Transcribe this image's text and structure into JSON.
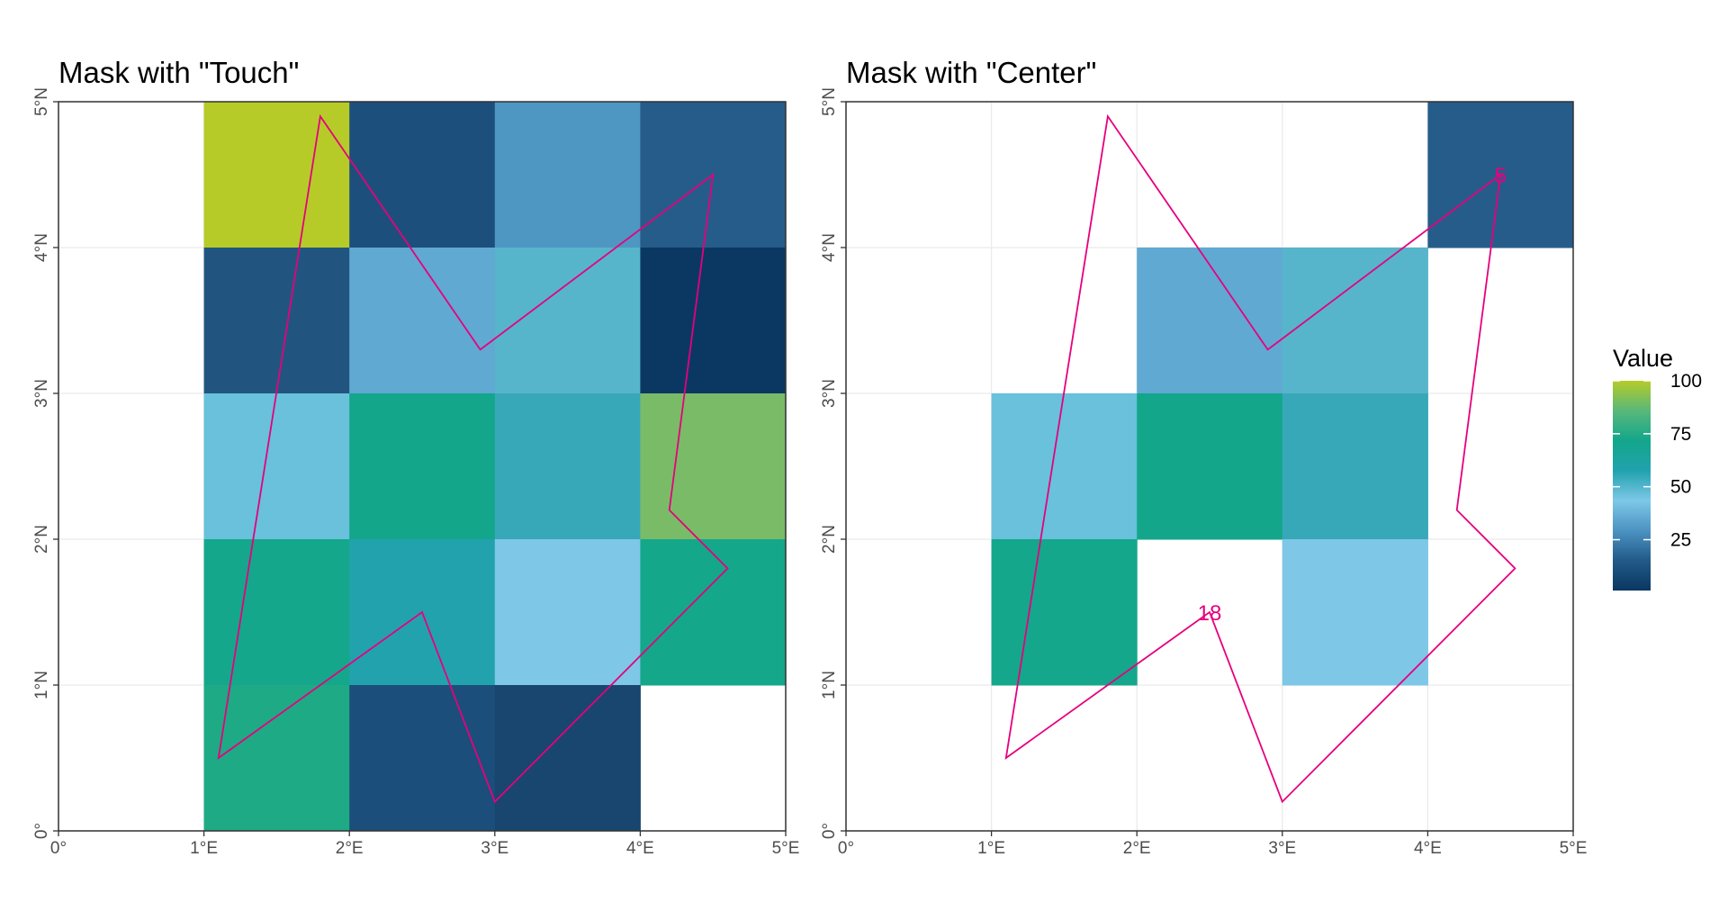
{
  "colors": {
    "polygon": "#E6007E",
    "grid": "#ebebeb",
    "frame": "#333333",
    "panel_bg": "#ffffff",
    "scale": [
      "#0A3761",
      "#215A88",
      "#4C93C2",
      "#7DC8E8",
      "#22A2AD",
      "#13A68B",
      "#58B87A",
      "#B6CB28"
    ]
  },
  "chart_data": [
    {
      "type": "heatmap",
      "title": "Mask with \"Touch\"",
      "xlim": [
        0,
        5
      ],
      "ylim": [
        0,
        5
      ],
      "x_ticks": [
        "0°",
        "1°E",
        "2°E",
        "3°E",
        "4°E",
        "5°E"
      ],
      "y_ticks": [
        "0°",
        "1°N",
        "2°N",
        "3°N",
        "4°N",
        "5°N"
      ],
      "cells": [
        {
          "x": 1,
          "y": 4,
          "value": 100,
          "color": "#B6CB28"
        },
        {
          "x": 2,
          "y": 4,
          "value": 10,
          "color": "#1D4F7C"
        },
        {
          "x": 3,
          "y": 4,
          "value": 30,
          "color": "#4E97C2"
        },
        {
          "x": 4,
          "y": 4,
          "value": 14,
          "color": "#265C89"
        },
        {
          "x": 1,
          "y": 3,
          "value": 12,
          "color": "#21557F"
        },
        {
          "x": 2,
          "y": 3,
          "value": 35,
          "color": "#60A9D2"
        },
        {
          "x": 3,
          "y": 3,
          "value": 50,
          "color": "#56B5CB"
        },
        {
          "x": 4,
          "y": 3,
          "value": 2,
          "color": "#0B3862"
        },
        {
          "x": 1,
          "y": 2,
          "value": 40,
          "color": "#69C1DC"
        },
        {
          "x": 2,
          "y": 2,
          "value": 72,
          "color": "#13A68B"
        },
        {
          "x": 3,
          "y": 2,
          "value": 60,
          "color": "#37A8B8"
        },
        {
          "x": 4,
          "y": 2,
          "value": 88,
          "color": "#7ABB67"
        },
        {
          "x": 1,
          "y": 1,
          "value": 74,
          "color": "#14A78B"
        },
        {
          "x": 2,
          "y": 1,
          "value": 62,
          "color": "#22A2AD"
        },
        {
          "x": 3,
          "y": 1,
          "value": 42,
          "color": "#7EC7E6"
        },
        {
          "x": 4,
          "y": 1,
          "value": 72,
          "color": "#14A78A"
        },
        {
          "x": 1,
          "y": 0,
          "value": 76,
          "color": "#1EAA85"
        },
        {
          "x": 2,
          "y": 0,
          "value": 8,
          "color": "#1B4E7A"
        },
        {
          "x": 3,
          "y": 0,
          "value": 6,
          "color": "#18466F"
        }
      ],
      "polygon": [
        [
          1.8,
          4.9
        ],
        [
          2.9,
          3.3
        ],
        [
          4.5,
          4.5
        ],
        [
          4.2,
          2.2
        ],
        [
          4.6,
          1.8
        ],
        [
          3.0,
          0.2
        ],
        [
          2.5,
          1.5
        ],
        [
          1.1,
          0.5
        ]
      ],
      "labels": []
    },
    {
      "type": "heatmap",
      "title": "Mask with \"Center\"",
      "xlim": [
        0,
        5
      ],
      "ylim": [
        0,
        5
      ],
      "x_ticks": [
        "0°",
        "1°E",
        "2°E",
        "3°E",
        "4°E",
        "5°E"
      ],
      "y_ticks": [
        "0°",
        "1°N",
        "2°N",
        "3°N",
        "4°N",
        "5°N"
      ],
      "cells": [
        {
          "x": 4,
          "y": 4,
          "value": 14,
          "color": "#265C89"
        },
        {
          "x": 2,
          "y": 3,
          "value": 35,
          "color": "#60A9D2"
        },
        {
          "x": 3,
          "y": 3,
          "value": 50,
          "color": "#56B5CB"
        },
        {
          "x": 1,
          "y": 2,
          "value": 40,
          "color": "#69C1DC"
        },
        {
          "x": 2,
          "y": 2,
          "value": 72,
          "color": "#13A68B"
        },
        {
          "x": 3,
          "y": 2,
          "value": 60,
          "color": "#37A8B8"
        },
        {
          "x": 1,
          "y": 1,
          "value": 74,
          "color": "#14A78B"
        },
        {
          "x": 3,
          "y": 1,
          "value": 42,
          "color": "#7EC7E6"
        }
      ],
      "polygon": [
        [
          1.8,
          4.9
        ],
        [
          2.9,
          3.3
        ],
        [
          4.5,
          4.5
        ],
        [
          4.2,
          2.2
        ],
        [
          4.6,
          1.8
        ],
        [
          3.0,
          0.2
        ],
        [
          2.5,
          1.5
        ],
        [
          1.1,
          0.5
        ]
      ],
      "labels": [
        {
          "text": "5",
          "x": 4.5,
          "y": 4.5
        },
        {
          "text": "18",
          "x": 2.5,
          "y": 1.5
        }
      ]
    }
  ],
  "legend": {
    "title": "Value",
    "labels": [
      "100",
      "75",
      "50",
      "25"
    ],
    "values": [
      100,
      75,
      50,
      25
    ],
    "range": [
      1,
      100
    ]
  }
}
